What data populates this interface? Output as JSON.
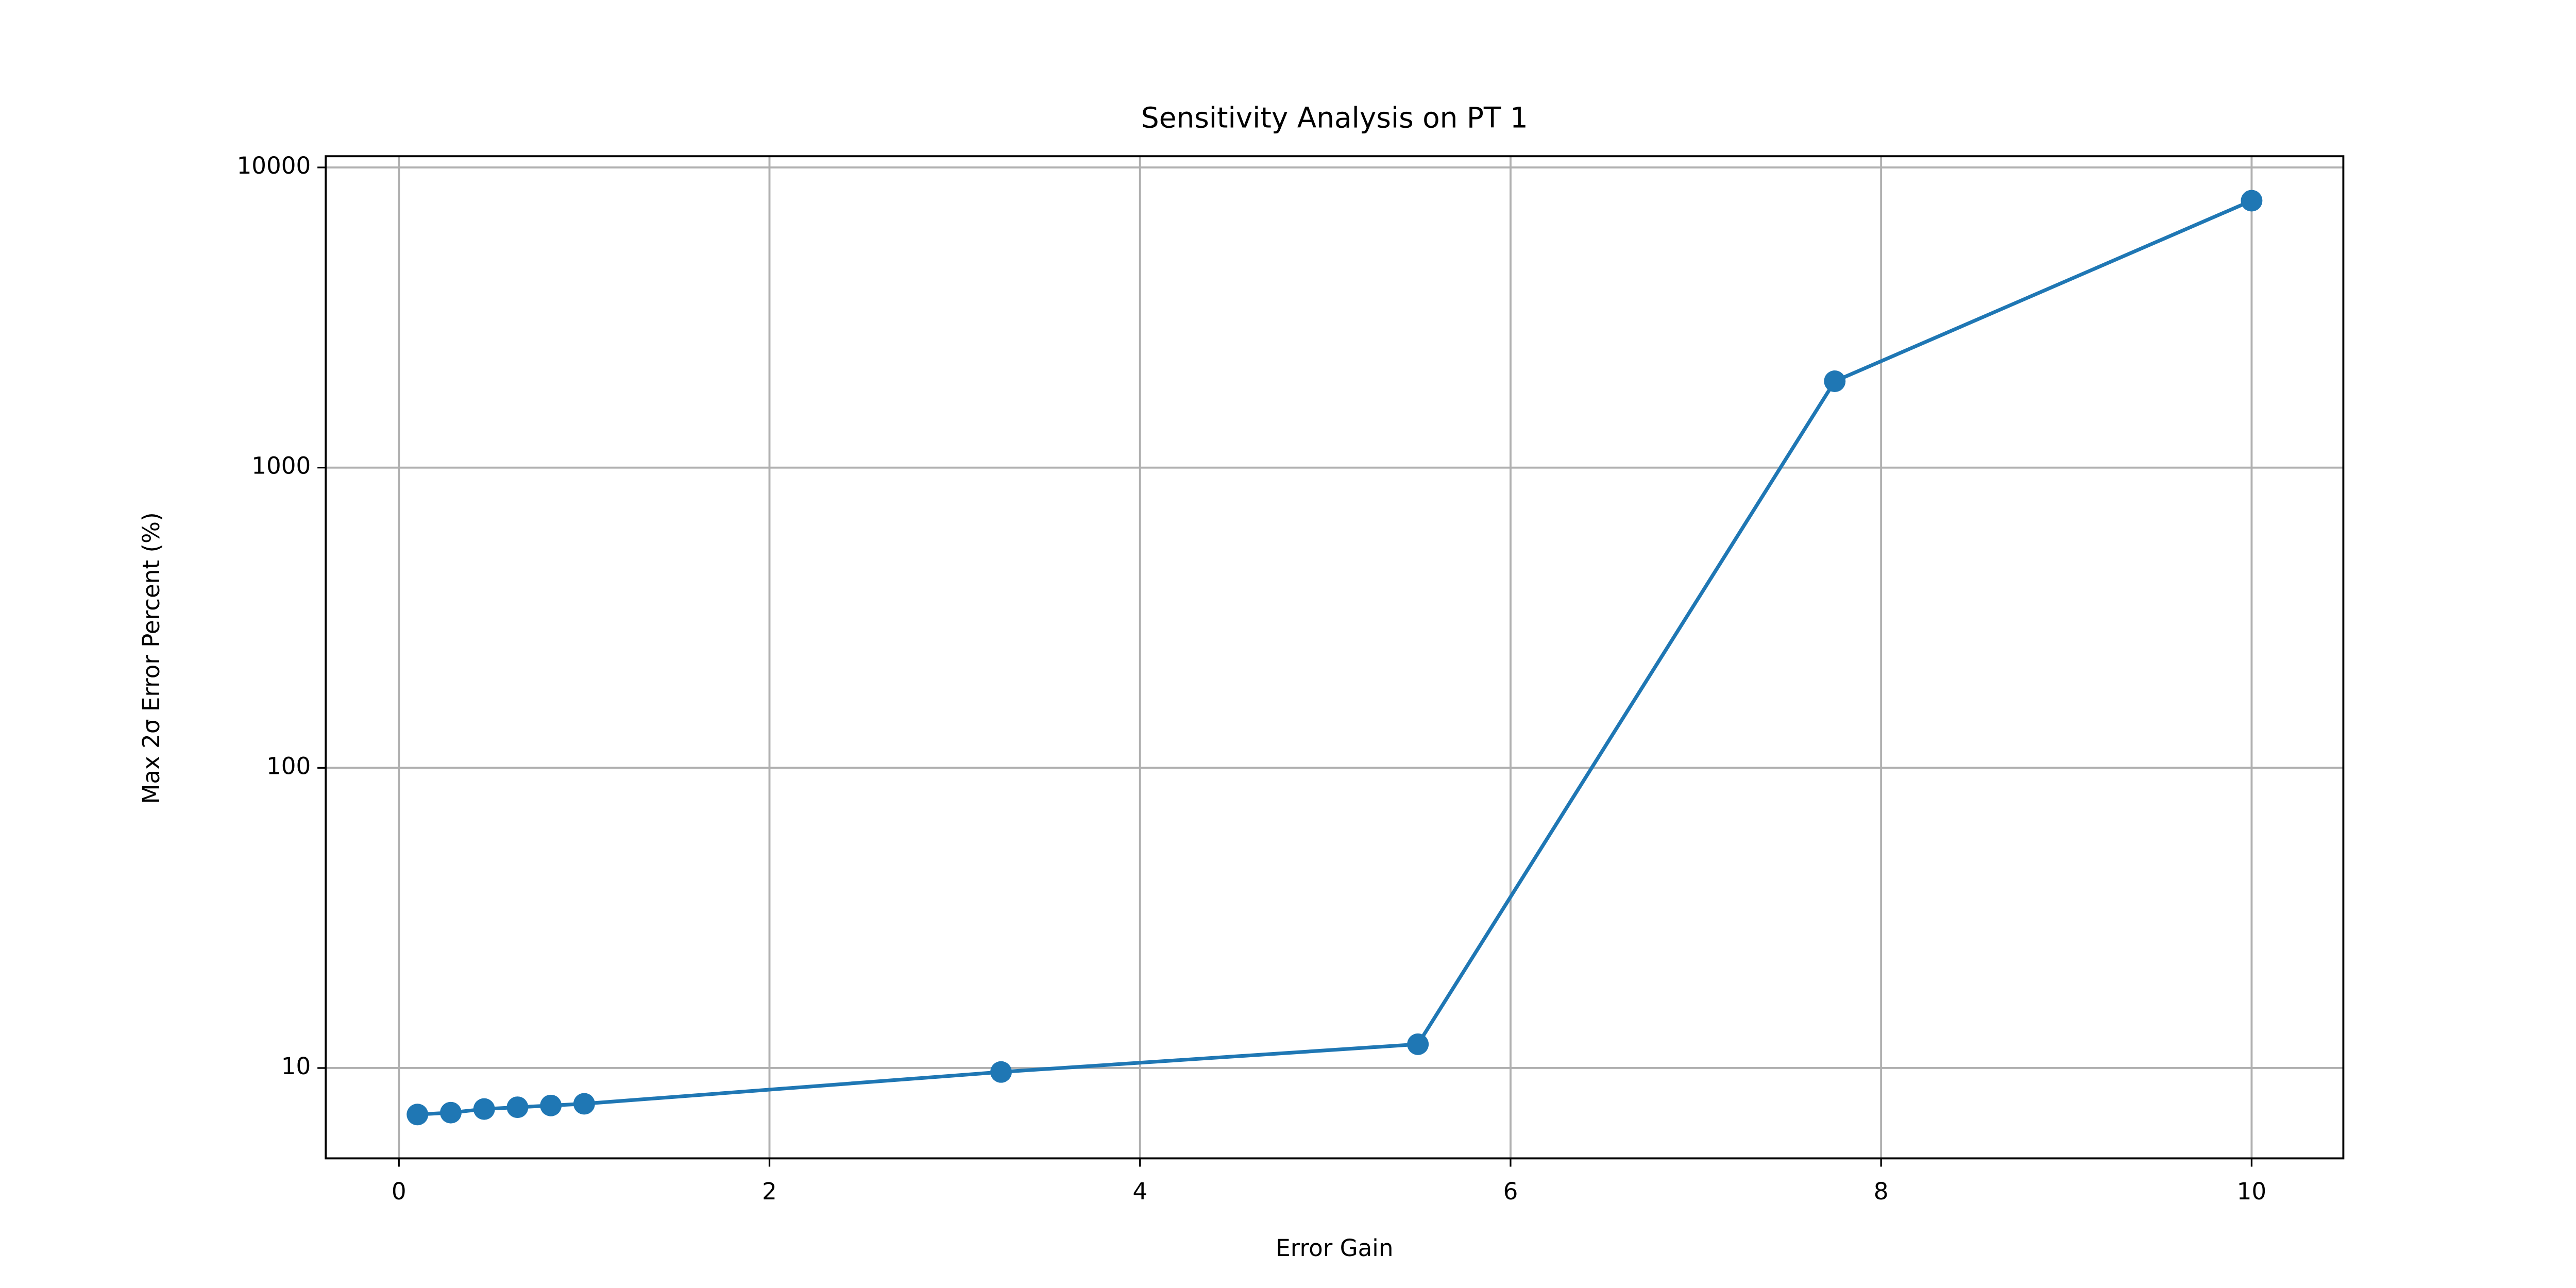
{
  "chart_data": {
    "type": "line",
    "title": "Sensitivity Analysis on PT 1",
    "x_label": "Error Gain",
    "y_label": "Max 2σ Error Percent (%)",
    "x": [
      0.1,
      0.28,
      0.46,
      0.64,
      0.82,
      1.0,
      3.25,
      5.5,
      7.75,
      10
    ],
    "values": [
      7.0,
      7.1,
      7.3,
      7.4,
      7.5,
      7.6,
      9.7,
      12.0,
      1940,
      7750
    ],
    "color": "#1f77b4",
    "xlim": [
      -0.395,
      10.495
    ],
    "xticks": [
      0,
      2,
      4,
      6,
      8,
      10
    ],
    "ylim": [
      5.0,
      10900
    ],
    "yticks": [
      10,
      100,
      1000,
      10000
    ],
    "y_scale": "log",
    "grid": true,
    "marker": "o"
  }
}
